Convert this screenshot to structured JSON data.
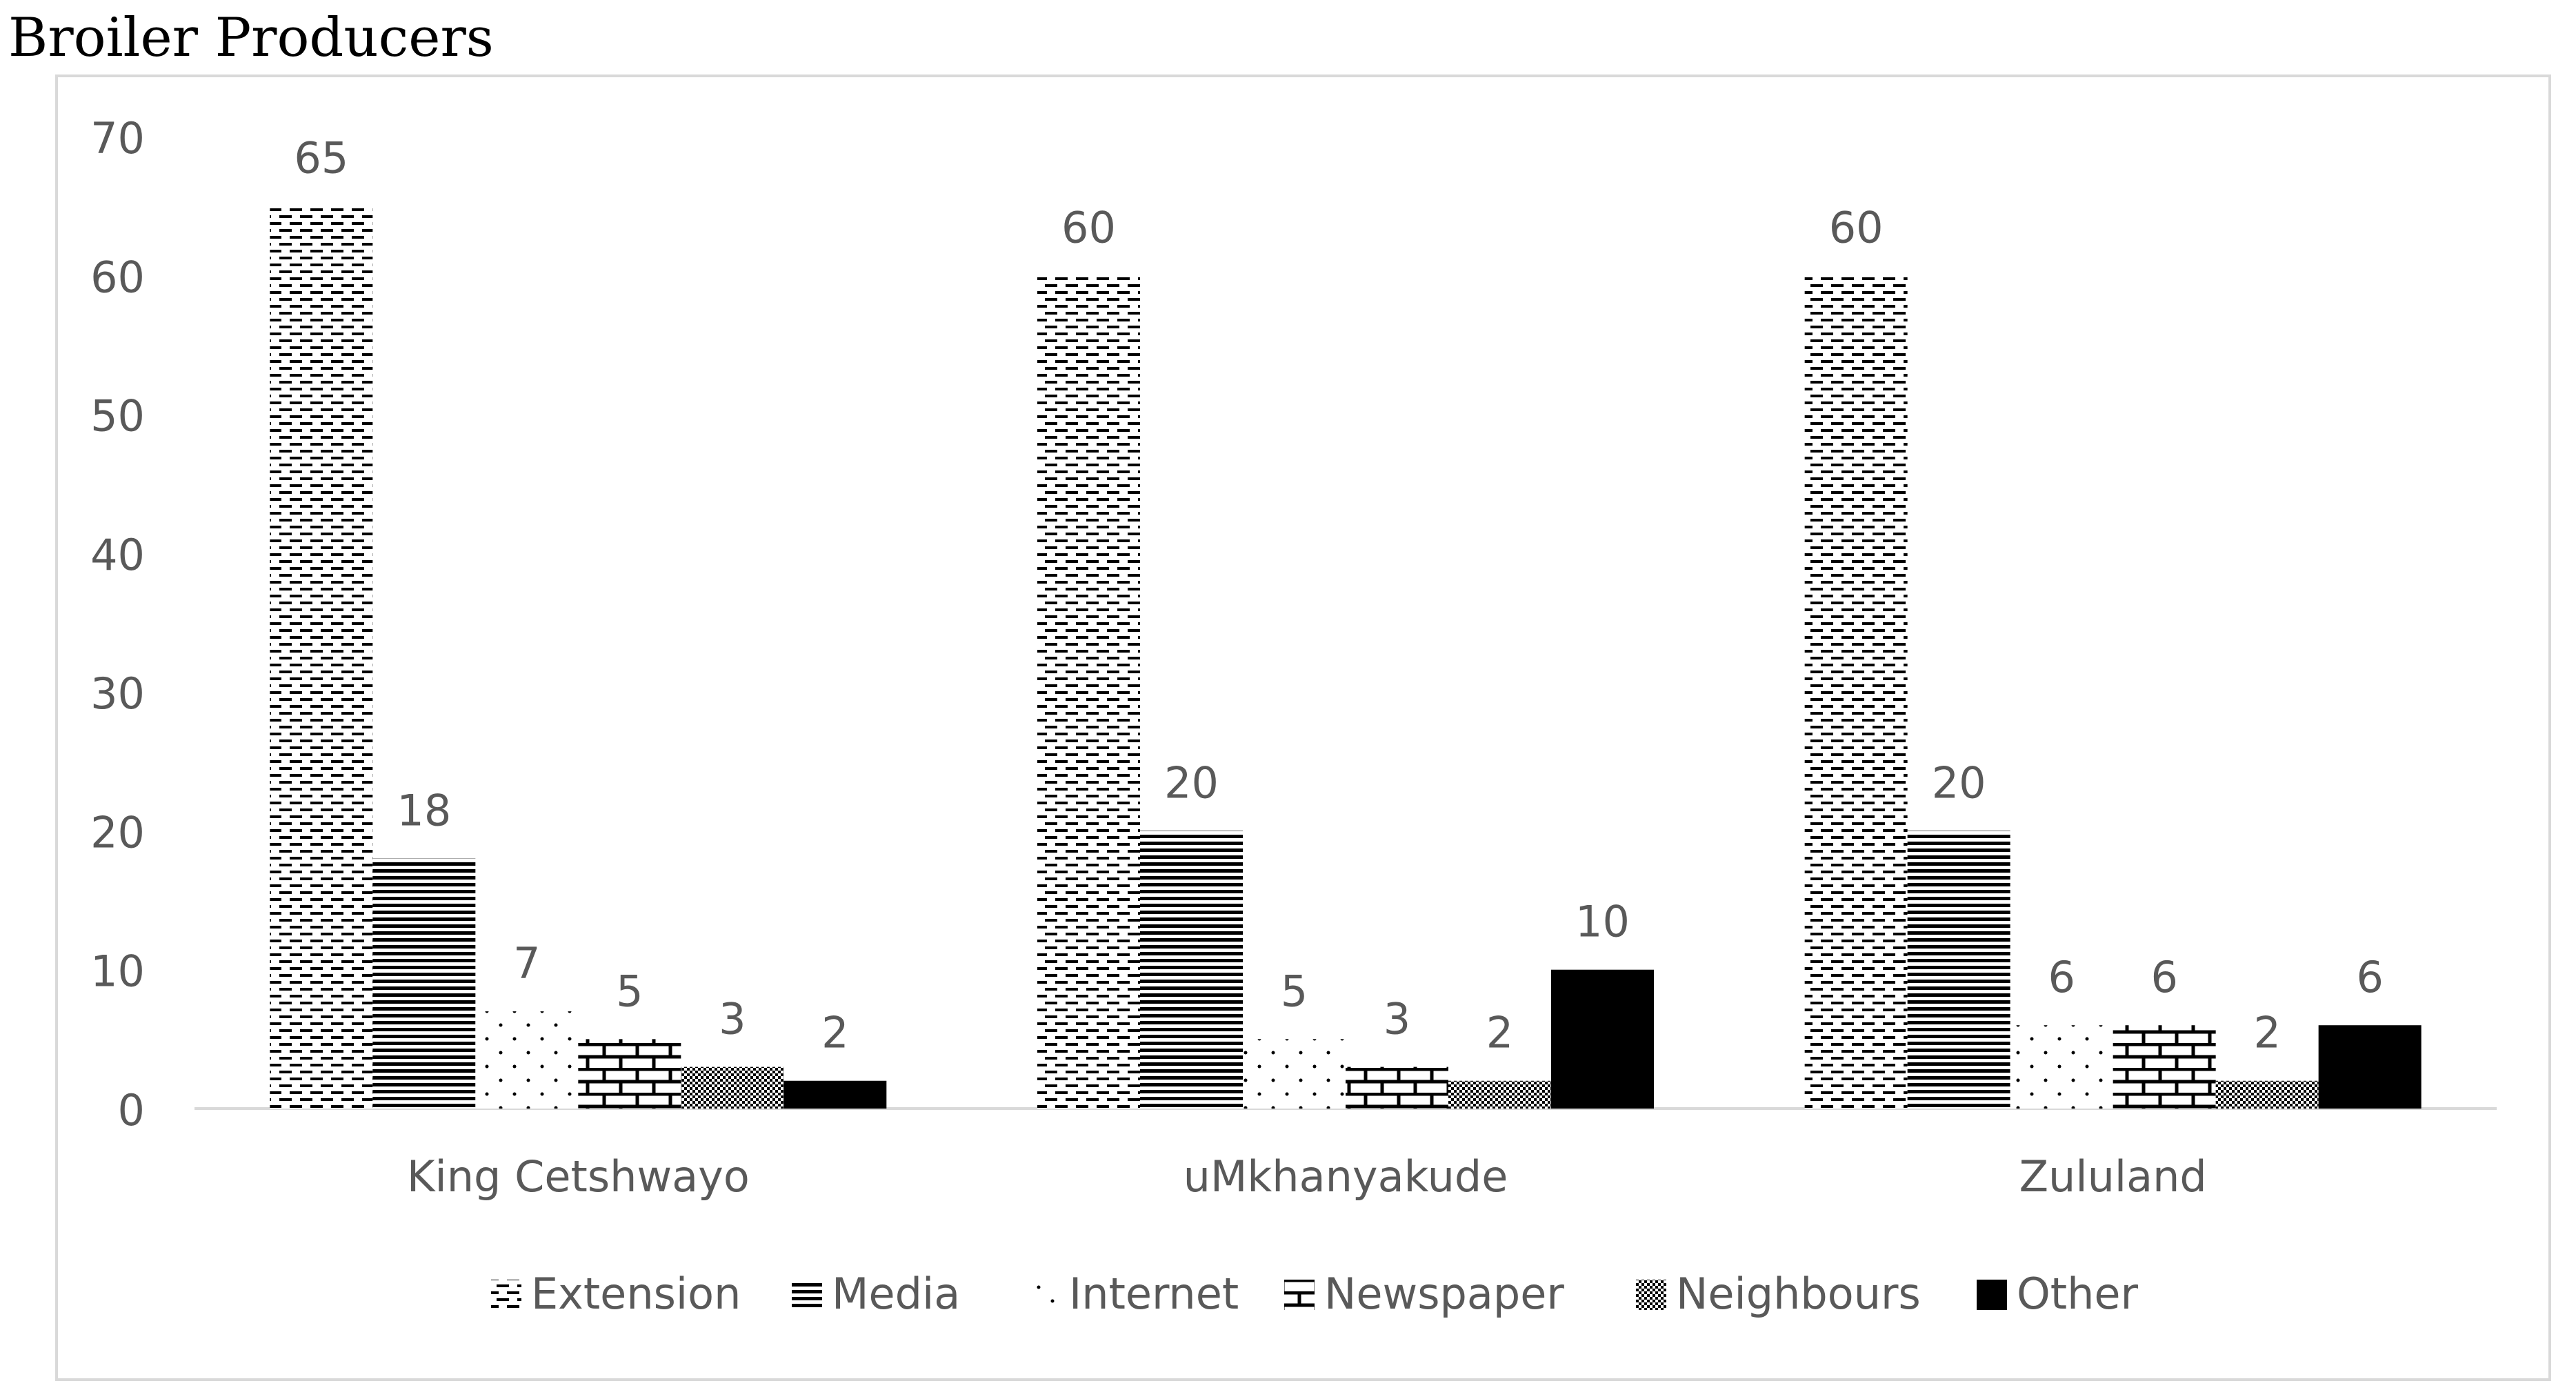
{
  "figure_title": "Broiler Producers",
  "chart_data": {
    "type": "bar",
    "title": "Broiler Producers",
    "xlabel": "",
    "ylabel": "",
    "ylim": [
      0,
      70
    ],
    "yticks": [
      "0",
      "10",
      "20",
      "30",
      "40",
      "50",
      "60",
      "70"
    ],
    "categories": [
      "King Cetshwayo",
      "uMkhanyakude",
      "Zululand"
    ],
    "series": [
      {
        "name": "Extension",
        "pattern": "dashes",
        "values": [
          65,
          60,
          60
        ]
      },
      {
        "name": "Media",
        "pattern": "hlines",
        "values": [
          18,
          20,
          20
        ]
      },
      {
        "name": "Internet",
        "pattern": "dots",
        "values": [
          7,
          5,
          6
        ]
      },
      {
        "name": "Newspaper",
        "pattern": "bricks",
        "values": [
          5,
          3,
          6
        ]
      },
      {
        "name": "Neighbours",
        "pattern": "checker",
        "values": [
          3,
          2,
          2
        ]
      },
      {
        "name": "Other",
        "pattern": "solid",
        "values": [
          2,
          10,
          6
        ]
      }
    ],
    "grid": false,
    "data_labels": true,
    "legend_position": "bottom",
    "colors": {
      "ink": "#000000",
      "tick_text": "#595959",
      "axis": "#d9d9d9",
      "frame": "#d9d9d9"
    }
  }
}
